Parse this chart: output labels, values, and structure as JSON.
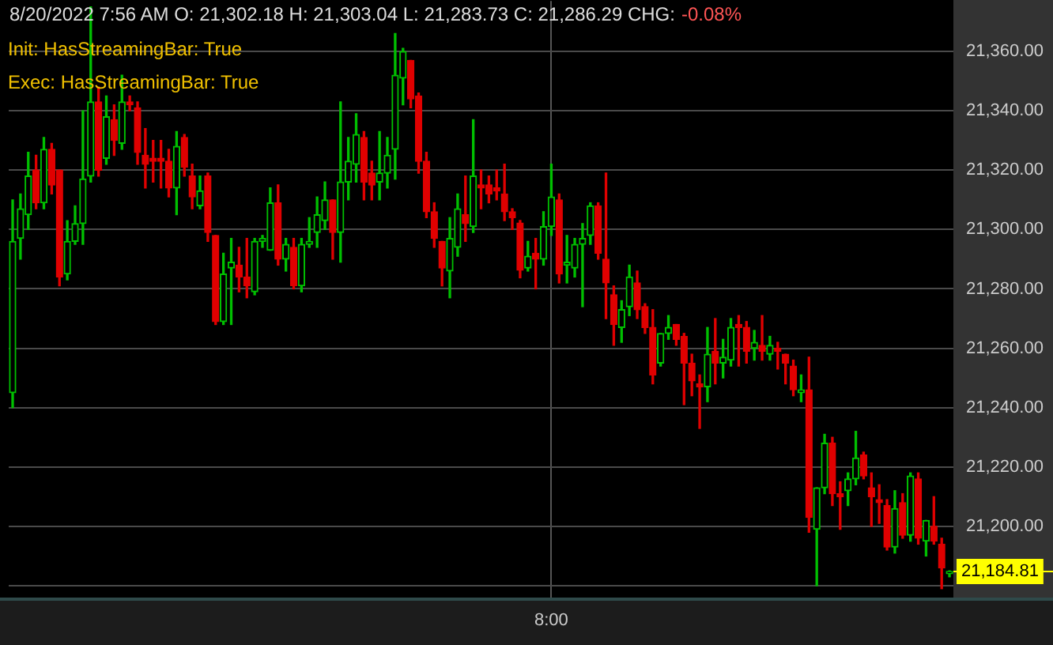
{
  "chart_data": {
    "type": "candlestick",
    "annotations": [
      "8/20/2022 7:56 AM O: 21,302.18 H: 21,303.04 L: 21,283.73 C: 21,286.29 CHG:",
      "-0.08%",
      "Init: HasStreamingBar: True",
      "Exec: HasStreamingBar: True"
    ],
    "categories": [
      null,
      null,
      null,
      null,
      null,
      null,
      null,
      null,
      null,
      null,
      null,
      null,
      null,
      null,
      null,
      null,
      null,
      null,
      null,
      null,
      null,
      null,
      null,
      null,
      null,
      null,
      null,
      null,
      null,
      null,
      null,
      null,
      null,
      null,
      null,
      null,
      null,
      null,
      null,
      null,
      null,
      null,
      null,
      null,
      null,
      null,
      null,
      null,
      null,
      null,
      null,
      null,
      null,
      null,
      null,
      null,
      null,
      null,
      null,
      null,
      null,
      null,
      null,
      null,
      null,
      null,
      null,
      null,
      null,
      "8:00",
      null,
      null,
      null,
      null,
      null,
      null,
      null,
      null,
      null,
      null,
      null,
      null,
      null,
      null,
      null,
      null,
      null,
      null,
      null,
      null,
      null,
      null,
      null,
      null,
      null,
      null,
      null,
      null,
      null,
      null,
      null,
      null,
      null,
      null,
      null,
      null,
      null,
      null,
      null,
      null,
      null,
      null,
      null,
      null,
      null,
      null,
      null,
      null,
      null,
      null,
      null
    ],
    "ohlc": [
      [
        21245,
        21310,
        21240,
        21296
      ],
      [
        21297,
        21312,
        21290,
        21307
      ],
      [
        21305,
        21326,
        21300,
        21318
      ],
      [
        21320,
        21325,
        21307,
        21309
      ],
      [
        21309,
        21331,
        21307,
        21327
      ],
      [
        21327,
        21329,
        21312,
        21315
      ],
      [
        21320,
        21320,
        21281,
        21284
      ],
      [
        21285,
        21303,
        21283,
        21296
      ],
      [
        21296,
        21308,
        21295,
        21302
      ],
      [
        21302,
        21340,
        21295,
        21317
      ],
      [
        21318,
        21375,
        21316,
        21343
      ],
      [
        21343,
        21348,
        21318,
        21320
      ],
      [
        21324,
        21345,
        21322,
        21338
      ],
      [
        21337,
        21342,
        21325,
        21330
      ],
      [
        21329,
        21352,
        21327,
        21343
      ],
      [
        21343,
        21345,
        21340,
        21342
      ],
      [
        21341,
        21343,
        21322,
        21326
      ],
      [
        21325,
        21334,
        21314,
        21322
      ],
      [
        21324,
        21330,
        21316,
        21323
      ],
      [
        21324,
        21330,
        21314,
        21323
      ],
      [
        21323,
        21327,
        21311,
        21314
      ],
      [
        21314,
        21333,
        21305,
        21328
      ],
      [
        21331,
        21332,
        21318,
        21321
      ],
      [
        21318,
        21322,
        21307,
        21311
      ],
      [
        21308,
        21318,
        21307,
        21313
      ],
      [
        21318,
        21319,
        21296,
        21299
      ],
      [
        21298,
        21298,
        21268,
        21269
      ],
      [
        21269,
        21292,
        21268,
        21285
      ],
      [
        21287,
        21297,
        21268,
        21289
      ],
      [
        21288,
        21294,
        21279,
        21284
      ],
      [
        21284,
        21297,
        21277,
        21281
      ],
      [
        21279,
        21297,
        21278,
        21296
      ],
      [
        21296,
        21298,
        21294,
        21297
      ],
      [
        21293,
        21314,
        21293,
        21309
      ],
      [
        21309,
        21315,
        21288,
        21290
      ],
      [
        21290,
        21297,
        21286,
        21295
      ],
      [
        21294,
        21297,
        21280,
        21281
      ],
      [
        21281,
        21297,
        21279,
        21295
      ],
      [
        21295,
        21304,
        21294,
        21296
      ],
      [
        21299,
        21311,
        21294,
        21305
      ],
      [
        21303,
        21316,
        21300,
        21310
      ],
      [
        21310,
        21310,
        21290,
        21299
      ],
      [
        21299,
        21343,
        21289,
        21316
      ],
      [
        21316,
        21331,
        21310,
        21323
      ],
      [
        21322,
        21339,
        21316,
        21332
      ],
      [
        21331,
        21333,
        21310,
        21316
      ],
      [
        21319,
        21323,
        21310,
        21315
      ],
      [
        21316,
        21333,
        21310,
        21319
      ],
      [
        21319,
        21331,
        21314,
        21325
      ],
      [
        21327,
        21366,
        21317,
        21352
      ],
      [
        21351,
        21361,
        21342,
        21360
      ],
      [
        21357,
        21357,
        21341,
        21344
      ],
      [
        21345,
        21346,
        21319,
        21323
      ],
      [
        21323,
        21326,
        21304,
        21306
      ],
      [
        21306,
        21309,
        21294,
        21297
      ],
      [
        21296,
        21296,
        21281,
        21287
      ],
      [
        21286,
        21304,
        21277,
        21297
      ],
      [
        21294,
        21312,
        21291,
        21307
      ],
      [
        21305,
        21318,
        21296,
        21302
      ],
      [
        21301,
        21337,
        21299,
        21318
      ],
      [
        21315,
        21320,
        21307,
        21314
      ],
      [
        21315,
        21318,
        21309,
        21312
      ],
      [
        21314,
        21320,
        21310,
        21313
      ],
      [
        21312,
        21322,
        21303,
        21306
      ],
      [
        21306,
        21307,
        21300,
        21304
      ],
      [
        21302.18,
        21303.04,
        21283.73,
        21286.29
      ],
      [
        21287,
        21296,
        21286,
        21291
      ],
      [
        21292,
        21297,
        21280,
        21290
      ],
      [
        21290,
        21306,
        21288,
        21301
      ],
      [
        21301,
        21322,
        21298,
        21311
      ],
      [
        21310,
        21312,
        21282,
        21285
      ],
      [
        21288,
        21298,
        21282,
        21289
      ],
      [
        21287,
        21297,
        21284,
        21295
      ],
      [
        21295,
        21302,
        21274,
        21297
      ],
      [
        21298,
        21309,
        21295,
        21308
      ],
      [
        21308,
        21309,
        21290,
        21292
      ],
      [
        21290,
        21319,
        21270,
        21282
      ],
      [
        21278,
        21281,
        21261,
        21268
      ],
      [
        21267,
        21276,
        21262,
        21273
      ],
      [
        21274,
        21288,
        21271,
        21284
      ],
      [
        21282,
        21286,
        21270,
        21273
      ],
      [
        21274,
        21275,
        21265,
        21267
      ],
      [
        21267,
        21273,
        21248,
        21251
      ],
      [
        21255,
        21265,
        21254,
        21265
      ],
      [
        21265,
        21271,
        21263,
        21267
      ],
      [
        21268,
        21268,
        21261,
        21263
      ],
      [
        21264,
        21265,
        21241,
        21255
      ],
      [
        21255,
        21258,
        21244,
        21249
      ],
      [
        21248,
        21251,
        21233,
        21247
      ],
      [
        21247,
        21267,
        21242,
        21258
      ],
      [
        21259,
        21270,
        21248,
        21255
      ],
      [
        21255,
        21263,
        21250,
        21257
      ],
      [
        21256,
        21270,
        21254,
        21267
      ],
      [
        21268,
        21271,
        21254,
        21267
      ],
      [
        21267,
        21269,
        21255,
        21259
      ],
      [
        21260,
        21266,
        21256,
        21262
      ],
      [
        21261,
        21271,
        21256,
        21259
      ],
      [
        21258,
        21264,
        21256,
        21261
      ],
      [
        21260,
        21262,
        21253,
        21259
      ],
      [
        21258,
        21258,
        21248,
        21255
      ],
      [
        21254,
        21256,
        21244,
        21246
      ],
      [
        21245,
        21251,
        21242,
        21246
      ],
      [
        21246,
        21257,
        21198,
        21203
      ],
      [
        21199,
        21213,
        21180,
        21213
      ],
      [
        21213,
        21231,
        21211,
        21228
      ],
      [
        21228,
        21230,
        21207,
        21211
      ],
      [
        21211,
        21215,
        21199,
        21210
      ],
      [
        21212,
        21218,
        21207,
        21216
      ],
      [
        21216,
        21232,
        21214,
        21223
      ],
      [
        21224,
        21225,
        21216,
        21217
      ],
      [
        21213,
        21218,
        21200,
        21210
      ],
      [
        21209,
        21214,
        21201,
        21208
      ],
      [
        21207,
        21209,
        21192,
        21193
      ],
      [
        21193,
        21212,
        21191,
        21206
      ],
      [
        21208,
        21211,
        21196,
        21197
      ],
      [
        21197,
        21218,
        21195,
        21217
      ],
      [
        21216,
        21218,
        21194,
        21196
      ],
      [
        21195,
        21202,
        21190,
        21202
      ],
      [
        21200,
        21210,
        21194,
        21195
      ],
      [
        21194,
        21196,
        21179,
        21186
      ],
      [
        21184,
        21185,
        21183,
        21184.81
      ]
    ],
    "ylim": [
      21176,
      21377
    ],
    "yticks": [
      {
        "value": 21180,
        "label": null
      },
      {
        "value": 21200,
        "label": "21,200.00"
      },
      {
        "value": 21220,
        "label": "21,220.00"
      },
      {
        "value": 21240,
        "label": "21,240.00"
      },
      {
        "value": 21260,
        "label": "21,260.00"
      },
      {
        "value": 21280,
        "label": "21,280.00"
      },
      {
        "value": 21300,
        "label": "21,300.00"
      },
      {
        "value": 21320,
        "label": "21,320.00"
      },
      {
        "value": 21340,
        "label": "21,340.00"
      },
      {
        "value": 21360,
        "label": "21,360.00"
      }
    ],
    "ref_lines": [
      {
        "axis": "y",
        "value": 21184.81,
        "label": "21,184.81",
        "color": "#ffff00"
      }
    ],
    "grid": true,
    "legend": false
  }
}
